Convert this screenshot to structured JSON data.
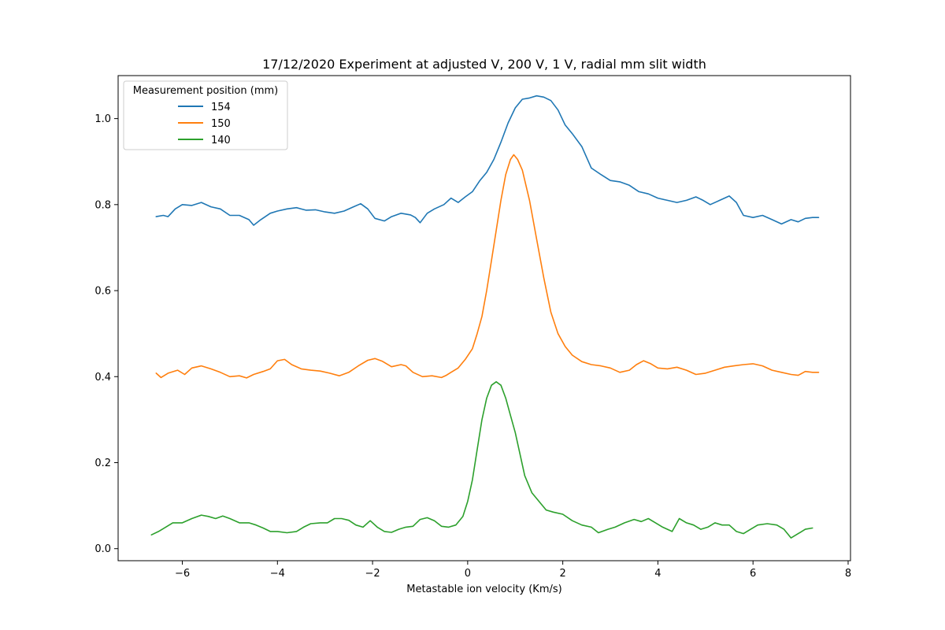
{
  "chart_data": {
    "type": "line",
    "title": "17/12/2020 Experiment at adjusted V, 200 V, 1 V, radial mm slit width",
    "xlabel": "Metastable ion velocity (Km/s)",
    "ylabel": "",
    "xlim": [
      -7.35,
      8.05
    ],
    "ylim": [
      -0.028,
      1.1
    ],
    "grid": false,
    "legend": {
      "title": "Measurement position (mm)",
      "placement": "top-left"
    },
    "x_ticks": [
      {
        "value": -6,
        "label": "−6"
      },
      {
        "value": -4,
        "label": "−4"
      },
      {
        "value": -2,
        "label": "−2"
      },
      {
        "value": 0,
        "label": "0"
      },
      {
        "value": 2,
        "label": "2"
      },
      {
        "value": 4,
        "label": "4"
      },
      {
        "value": 6,
        "label": "6"
      },
      {
        "value": 8,
        "label": "8"
      }
    ],
    "y_ticks": [
      {
        "value": 0.0,
        "label": "0.0"
      },
      {
        "value": 0.2,
        "label": "0.2"
      },
      {
        "value": 0.4,
        "label": "0.4"
      },
      {
        "value": 0.6,
        "label": "0.6"
      },
      {
        "value": 0.8,
        "label": "0.8"
      },
      {
        "value": 1.0,
        "label": "1.0"
      }
    ],
    "series": [
      {
        "name": "154",
        "color": "#1f77b4",
        "points": [
          [
            -6.55,
            0.772
          ],
          [
            -6.4,
            0.775
          ],
          [
            -6.3,
            0.772
          ],
          [
            -6.15,
            0.79
          ],
          [
            -6.0,
            0.8
          ],
          [
            -5.8,
            0.798
          ],
          [
            -5.6,
            0.805
          ],
          [
            -5.4,
            0.795
          ],
          [
            -5.2,
            0.79
          ],
          [
            -5.0,
            0.775
          ],
          [
            -4.8,
            0.775
          ],
          [
            -4.6,
            0.765
          ],
          [
            -4.5,
            0.752
          ],
          [
            -4.35,
            0.765
          ],
          [
            -4.15,
            0.78
          ],
          [
            -4.0,
            0.785
          ],
          [
            -3.8,
            0.79
          ],
          [
            -3.6,
            0.793
          ],
          [
            -3.4,
            0.787
          ],
          [
            -3.2,
            0.788
          ],
          [
            -3.0,
            0.783
          ],
          [
            -2.8,
            0.78
          ],
          [
            -2.6,
            0.785
          ],
          [
            -2.4,
            0.795
          ],
          [
            -2.25,
            0.802
          ],
          [
            -2.1,
            0.79
          ],
          [
            -1.95,
            0.768
          ],
          [
            -1.75,
            0.762
          ],
          [
            -1.6,
            0.772
          ],
          [
            -1.4,
            0.78
          ],
          [
            -1.2,
            0.776
          ],
          [
            -1.1,
            0.77
          ],
          [
            -1.0,
            0.758
          ],
          [
            -0.85,
            0.78
          ],
          [
            -0.7,
            0.79
          ],
          [
            -0.5,
            0.8
          ],
          [
            -0.35,
            0.815
          ],
          [
            -0.2,
            0.805
          ],
          [
            -0.05,
            0.818
          ],
          [
            0.1,
            0.83
          ],
          [
            0.25,
            0.855
          ],
          [
            0.4,
            0.875
          ],
          [
            0.55,
            0.905
          ],
          [
            0.7,
            0.945
          ],
          [
            0.85,
            0.99
          ],
          [
            1.0,
            1.025
          ],
          [
            1.15,
            1.045
          ],
          [
            1.3,
            1.048
          ],
          [
            1.45,
            1.053
          ],
          [
            1.6,
            1.05
          ],
          [
            1.75,
            1.042
          ],
          [
            1.9,
            1.02
          ],
          [
            2.05,
            0.985
          ],
          [
            2.2,
            0.965
          ],
          [
            2.4,
            0.935
          ],
          [
            2.6,
            0.885
          ],
          [
            2.8,
            0.87
          ],
          [
            3.0,
            0.856
          ],
          [
            3.2,
            0.853
          ],
          [
            3.4,
            0.845
          ],
          [
            3.6,
            0.83
          ],
          [
            3.8,
            0.825
          ],
          [
            4.0,
            0.815
          ],
          [
            4.2,
            0.81
          ],
          [
            4.4,
            0.805
          ],
          [
            4.6,
            0.81
          ],
          [
            4.8,
            0.818
          ],
          [
            4.95,
            0.81
          ],
          [
            5.1,
            0.8
          ],
          [
            5.3,
            0.81
          ],
          [
            5.5,
            0.82
          ],
          [
            5.65,
            0.805
          ],
          [
            5.8,
            0.775
          ],
          [
            6.0,
            0.77
          ],
          [
            6.2,
            0.775
          ],
          [
            6.4,
            0.765
          ],
          [
            6.6,
            0.755
          ],
          [
            6.8,
            0.765
          ],
          [
            6.95,
            0.76
          ],
          [
            7.1,
            0.768
          ],
          [
            7.25,
            0.77
          ],
          [
            7.38,
            0.77
          ]
        ]
      },
      {
        "name": "150",
        "color": "#ff7f0e",
        "points": [
          [
            -6.55,
            0.408
          ],
          [
            -6.45,
            0.398
          ],
          [
            -6.3,
            0.408
          ],
          [
            -6.1,
            0.415
          ],
          [
            -5.95,
            0.405
          ],
          [
            -5.8,
            0.42
          ],
          [
            -5.6,
            0.425
          ],
          [
            -5.4,
            0.418
          ],
          [
            -5.2,
            0.41
          ],
          [
            -5.0,
            0.4
          ],
          [
            -4.8,
            0.402
          ],
          [
            -4.65,
            0.397
          ],
          [
            -4.5,
            0.405
          ],
          [
            -4.3,
            0.412
          ],
          [
            -4.15,
            0.418
          ],
          [
            -4.0,
            0.437
          ],
          [
            -3.85,
            0.44
          ],
          [
            -3.7,
            0.428
          ],
          [
            -3.5,
            0.418
          ],
          [
            -3.3,
            0.415
          ],
          [
            -3.1,
            0.413
          ],
          [
            -2.9,
            0.408
          ],
          [
            -2.7,
            0.402
          ],
          [
            -2.5,
            0.41
          ],
          [
            -2.3,
            0.425
          ],
          [
            -2.1,
            0.438
          ],
          [
            -1.95,
            0.442
          ],
          [
            -1.8,
            0.436
          ],
          [
            -1.6,
            0.423
          ],
          [
            -1.4,
            0.428
          ],
          [
            -1.3,
            0.425
          ],
          [
            -1.15,
            0.41
          ],
          [
            -0.95,
            0.4
          ],
          [
            -0.75,
            0.402
          ],
          [
            -0.55,
            0.398
          ],
          [
            -0.45,
            0.403
          ],
          [
            -0.35,
            0.41
          ],
          [
            -0.2,
            0.42
          ],
          [
            -0.05,
            0.44
          ],
          [
            0.1,
            0.465
          ],
          [
            0.2,
            0.5
          ],
          [
            0.3,
            0.54
          ],
          [
            0.4,
            0.6
          ],
          [
            0.5,
            0.67
          ],
          [
            0.6,
            0.74
          ],
          [
            0.7,
            0.81
          ],
          [
            0.8,
            0.87
          ],
          [
            0.9,
            0.905
          ],
          [
            0.97,
            0.916
          ],
          [
            1.05,
            0.905
          ],
          [
            1.15,
            0.88
          ],
          [
            1.3,
            0.81
          ],
          [
            1.45,
            0.72
          ],
          [
            1.6,
            0.63
          ],
          [
            1.75,
            0.55
          ],
          [
            1.9,
            0.5
          ],
          [
            2.05,
            0.47
          ],
          [
            2.2,
            0.45
          ],
          [
            2.4,
            0.435
          ],
          [
            2.6,
            0.428
          ],
          [
            2.8,
            0.425
          ],
          [
            3.0,
            0.42
          ],
          [
            3.2,
            0.41
          ],
          [
            3.4,
            0.415
          ],
          [
            3.55,
            0.428
          ],
          [
            3.7,
            0.437
          ],
          [
            3.85,
            0.43
          ],
          [
            4.0,
            0.42
          ],
          [
            4.2,
            0.418
          ],
          [
            4.4,
            0.422
          ],
          [
            4.6,
            0.415
          ],
          [
            4.8,
            0.405
          ],
          [
            5.0,
            0.408
          ],
          [
            5.2,
            0.415
          ],
          [
            5.4,
            0.422
          ],
          [
            5.6,
            0.425
          ],
          [
            5.8,
            0.428
          ],
          [
            6.0,
            0.43
          ],
          [
            6.2,
            0.425
          ],
          [
            6.4,
            0.415
          ],
          [
            6.6,
            0.41
          ],
          [
            6.8,
            0.405
          ],
          [
            6.95,
            0.403
          ],
          [
            7.1,
            0.412
          ],
          [
            7.25,
            0.41
          ],
          [
            7.38,
            0.41
          ]
        ]
      },
      {
        "name": "140",
        "color": "#2ca02c",
        "points": [
          [
            -6.65,
            0.032
          ],
          [
            -6.5,
            0.04
          ],
          [
            -6.35,
            0.05
          ],
          [
            -6.2,
            0.06
          ],
          [
            -6.0,
            0.06
          ],
          [
            -5.8,
            0.07
          ],
          [
            -5.6,
            0.078
          ],
          [
            -5.45,
            0.075
          ],
          [
            -5.3,
            0.07
          ],
          [
            -5.15,
            0.076
          ],
          [
            -5.0,
            0.07
          ],
          [
            -4.8,
            0.06
          ],
          [
            -4.6,
            0.06
          ],
          [
            -4.45,
            0.055
          ],
          [
            -4.3,
            0.048
          ],
          [
            -4.15,
            0.04
          ],
          [
            -4.0,
            0.04
          ],
          [
            -3.8,
            0.037
          ],
          [
            -3.6,
            0.04
          ],
          [
            -3.45,
            0.05
          ],
          [
            -3.3,
            0.058
          ],
          [
            -3.1,
            0.06
          ],
          [
            -2.95,
            0.06
          ],
          [
            -2.8,
            0.07
          ],
          [
            -2.65,
            0.07
          ],
          [
            -2.5,
            0.066
          ],
          [
            -2.35,
            0.055
          ],
          [
            -2.2,
            0.05
          ],
          [
            -2.05,
            0.065
          ],
          [
            -1.9,
            0.05
          ],
          [
            -1.75,
            0.04
          ],
          [
            -1.6,
            0.038
          ],
          [
            -1.45,
            0.045
          ],
          [
            -1.3,
            0.05
          ],
          [
            -1.15,
            0.052
          ],
          [
            -1.0,
            0.068
          ],
          [
            -0.85,
            0.072
          ],
          [
            -0.7,
            0.065
          ],
          [
            -0.55,
            0.052
          ],
          [
            -0.4,
            0.05
          ],
          [
            -0.25,
            0.055
          ],
          [
            -0.1,
            0.075
          ],
          [
            0.0,
            0.11
          ],
          [
            0.1,
            0.16
          ],
          [
            0.2,
            0.23
          ],
          [
            0.3,
            0.3
          ],
          [
            0.4,
            0.35
          ],
          [
            0.5,
            0.38
          ],
          [
            0.6,
            0.388
          ],
          [
            0.7,
            0.38
          ],
          [
            0.8,
            0.35
          ],
          [
            0.9,
            0.31
          ],
          [
            1.0,
            0.27
          ],
          [
            1.1,
            0.22
          ],
          [
            1.2,
            0.17
          ],
          [
            1.35,
            0.13
          ],
          [
            1.5,
            0.11
          ],
          [
            1.65,
            0.09
          ],
          [
            1.8,
            0.085
          ],
          [
            2.0,
            0.08
          ],
          [
            2.2,
            0.065
          ],
          [
            2.4,
            0.055
          ],
          [
            2.6,
            0.05
          ],
          [
            2.75,
            0.037
          ],
          [
            2.95,
            0.045
          ],
          [
            3.1,
            0.05
          ],
          [
            3.3,
            0.06
          ],
          [
            3.5,
            0.068
          ],
          [
            3.65,
            0.063
          ],
          [
            3.8,
            0.07
          ],
          [
            3.95,
            0.06
          ],
          [
            4.1,
            0.05
          ],
          [
            4.3,
            0.04
          ],
          [
            4.45,
            0.07
          ],
          [
            4.6,
            0.06
          ],
          [
            4.75,
            0.055
          ],
          [
            4.9,
            0.045
          ],
          [
            5.05,
            0.05
          ],
          [
            5.2,
            0.06
          ],
          [
            5.35,
            0.055
          ],
          [
            5.5,
            0.055
          ],
          [
            5.65,
            0.04
          ],
          [
            5.8,
            0.035
          ],
          [
            5.95,
            0.045
          ],
          [
            6.1,
            0.055
          ],
          [
            6.3,
            0.058
          ],
          [
            6.5,
            0.055
          ],
          [
            6.65,
            0.045
          ],
          [
            6.8,
            0.025
          ],
          [
            6.95,
            0.035
          ],
          [
            7.1,
            0.045
          ],
          [
            7.25,
            0.048
          ]
        ]
      }
    ]
  }
}
